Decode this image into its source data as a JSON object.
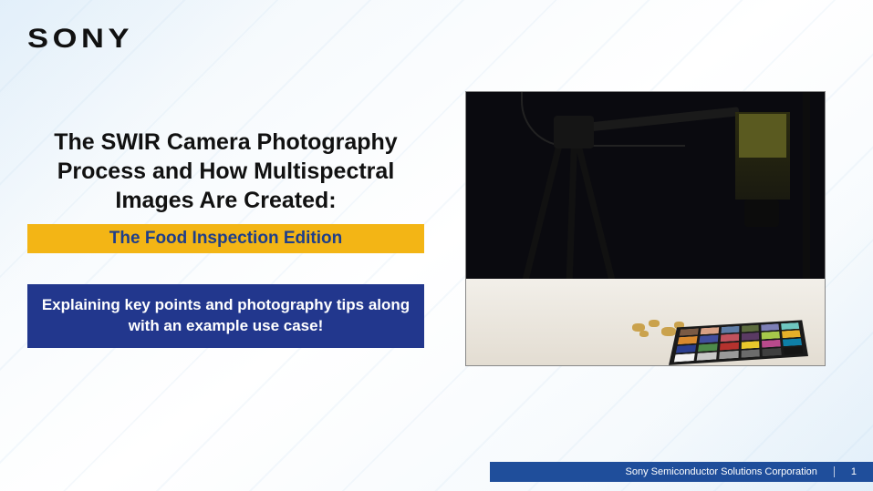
{
  "brand": "SONY",
  "title": "The SWIR Camera Photography Process and How Multispectral Images Are Created:",
  "subtitle": "The Food Inspection Edition",
  "callout": "Explaining key points and photography tips along with an example use case!",
  "footer": {
    "org": "Sony Semiconductor Solutions Corporation",
    "page": "1"
  },
  "colors": {
    "subtitle_bg": "#f3b515",
    "subtitle_text": "#1e3e8a",
    "callout_bg": "#22378d",
    "callout_text": "#ffffff",
    "footer_bg": "#1f4e9b",
    "title_text": "#111111"
  },
  "checker_swatches": [
    "#7a5a44",
    "#d9a185",
    "#5e7ca5",
    "#5c6b3e",
    "#7d7fb5",
    "#6fc6c0",
    "#d98a2e",
    "#414e9e",
    "#c1525d",
    "#5a3a63",
    "#a6c84a",
    "#e6af2a",
    "#2b3e8f",
    "#4d8a4a",
    "#b5322e",
    "#e9c72c",
    "#b94a8c",
    "#0e7fa8",
    "#f4f4f4",
    "#c8c8c8",
    "#9a9a9a",
    "#6c6c6c",
    "#3f3f3f",
    "#151515"
  ]
}
